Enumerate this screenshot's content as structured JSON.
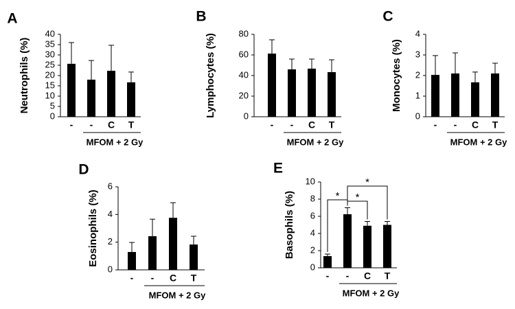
{
  "chart_data": [
    {
      "type": "bar",
      "panel_label": "A",
      "ylabel": "Neutrophils (%)",
      "categories": [
        "-",
        "-",
        "C",
        "T"
      ],
      "group_label": "MFOM + 2 Gy",
      "values": [
        25.7,
        18,
        22.3,
        16.7
      ],
      "errors": [
        10.3,
        9.3,
        12.4,
        5
      ],
      "color": "#000000",
      "ylim": [
        0,
        40
      ],
      "yticks": [
        0,
        5,
        10,
        15,
        20,
        25,
        30,
        35,
        40
      ]
    },
    {
      "type": "bar",
      "panel_label": "B",
      "ylabel": "Lymphocytes (%)",
      "categories": [
        "-",
        "-",
        "C",
        "T"
      ],
      "group_label": "MFOM + 2 Gy",
      "values": [
        61.3,
        46,
        46.7,
        43.3
      ],
      "errors": [
        13.4,
        10,
        9.3,
        12
      ],
      "color": "#000000",
      "ylim": [
        0,
        80
      ],
      "yticks": [
        0,
        20,
        40,
        60,
        80
      ]
    },
    {
      "type": "bar",
      "panel_label": "C",
      "ylabel": "Monocytes (%)",
      "categories": [
        "-",
        "-",
        "C",
        "T"
      ],
      "group_label": "MFOM + 2 Gy",
      "values": [
        2.03,
        2.1,
        1.67,
        2.1
      ],
      "errors": [
        0.94,
        1,
        0.5,
        0.5
      ],
      "color": "#000000",
      "ylim": [
        0,
        4
      ],
      "yticks": [
        0,
        1,
        2,
        3,
        4
      ]
    },
    {
      "type": "bar",
      "panel_label": "D",
      "ylabel": "Eosinophils (%)",
      "categories": [
        "-",
        "-",
        "C",
        "T"
      ],
      "group_label": "MFOM + 2 Gy",
      "values": [
        1.29,
        2.43,
        3.76,
        1.83
      ],
      "errors": [
        0.69,
        1.23,
        1.09,
        0.6
      ],
      "color": "#000000",
      "ylim": [
        0,
        6
      ],
      "yticks": [
        0,
        2,
        4,
        6
      ]
    },
    {
      "type": "bar",
      "panel_label": "E",
      "ylabel": "Basophils (%)",
      "categories": [
        "-",
        "-",
        "C",
        "T"
      ],
      "group_label": "MFOM + 2 Gy",
      "values": [
        1.36,
        6.24,
        4.9,
        5
      ],
      "errors": [
        0.24,
        0.76,
        0.5,
        0.4
      ],
      "color": "#000000",
      "ylim": [
        0,
        10
      ],
      "yticks": [
        0,
        2,
        4,
        6,
        8,
        10
      ],
      "significance": [
        {
          "between": [
            0,
            1
          ],
          "label": "*"
        },
        {
          "between": [
            1,
            2
          ],
          "label": "*"
        },
        {
          "between": [
            1,
            3
          ],
          "label": "*"
        }
      ]
    }
  ]
}
